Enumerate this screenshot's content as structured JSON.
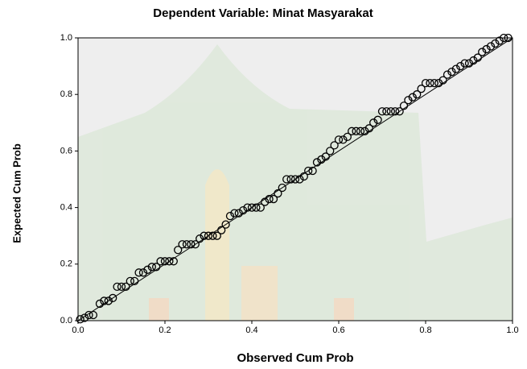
{
  "chart_data": {
    "type": "scatter",
    "title": "Dependent Variable: Minat Masyarakat",
    "x_label": "Observed Cum Prob",
    "y_label": "Expected Cum Prob",
    "color": "#000000",
    "xlim": [
      0,
      1
    ],
    "ylim": [
      0,
      1
    ],
    "xticks": [
      {
        "value": 0,
        "label": "0.0"
      },
      0.2,
      0.4,
      0.6,
      0.8,
      {
        "value": 1,
        "label": "1.0"
      }
    ],
    "yticks": [
      {
        "value": 0,
        "label": "0.0"
      },
      0.2,
      0.4,
      0.6,
      0.8,
      {
        "value": 1,
        "label": "1.0"
      }
    ],
    "grid": false,
    "x": [
      0.005,
      0.015,
      0.025,
      0.035,
      0.05,
      0.06,
      0.07,
      0.08,
      0.09,
      0.1,
      0.11,
      0.12,
      0.13,
      0.14,
      0.15,
      0.16,
      0.17,
      0.18,
      0.19,
      0.2,
      0.21,
      0.22,
      0.23,
      0.24,
      0.25,
      0.26,
      0.27,
      0.28,
      0.29,
      0.3,
      0.31,
      0.32,
      0.33,
      0.34,
      0.35,
      0.36,
      0.37,
      0.38,
      0.39,
      0.4,
      0.41,
      0.42,
      0.43,
      0.44,
      0.45,
      0.46,
      0.47,
      0.48,
      0.49,
      0.5,
      0.51,
      0.52,
      0.53,
      0.54,
      0.55,
      0.56,
      0.57,
      0.58,
      0.59,
      0.6,
      0.61,
      0.62,
      0.63,
      0.64,
      0.65,
      0.66,
      0.67,
      0.68,
      0.69,
      0.7,
      0.71,
      0.72,
      0.73,
      0.74,
      0.75,
      0.76,
      0.77,
      0.78,
      0.79,
      0.8,
      0.81,
      0.82,
      0.83,
      0.84,
      0.85,
      0.86,
      0.87,
      0.88,
      0.89,
      0.9,
      0.91,
      0.92,
      0.93,
      0.94,
      0.95,
      0.96,
      0.97,
      0.98,
      0.99
    ],
    "values": [
      0.005,
      0.01,
      0.02,
      0.02,
      0.06,
      0.07,
      0.07,
      0.08,
      0.12,
      0.12,
      0.12,
      0.14,
      0.14,
      0.17,
      0.17,
      0.18,
      0.19,
      0.19,
      0.21,
      0.21,
      0.21,
      0.21,
      0.25,
      0.27,
      0.27,
      0.27,
      0.27,
      0.29,
      0.3,
      0.3,
      0.3,
      0.3,
      0.32,
      0.34,
      0.37,
      0.38,
      0.38,
      0.39,
      0.4,
      0.4,
      0.4,
      0.4,
      0.42,
      0.43,
      0.43,
      0.45,
      0.47,
      0.5,
      0.5,
      0.5,
      0.5,
      0.51,
      0.53,
      0.53,
      0.56,
      0.57,
      0.58,
      0.6,
      0.62,
      0.64,
      0.64,
      0.65,
      0.67,
      0.67,
      0.67,
      0.67,
      0.68,
      0.7,
      0.71,
      0.74,
      0.74,
      0.74,
      0.74,
      0.74,
      0.76,
      0.78,
      0.79,
      0.8,
      0.82,
      0.84,
      0.84,
      0.84,
      0.84,
      0.85,
      0.87,
      0.88,
      0.89,
      0.9,
      0.91,
      0.91,
      0.92,
      0.93,
      0.95,
      0.96,
      0.97,
      0.98,
      0.99,
      1.0,
      1.0
    ]
  }
}
